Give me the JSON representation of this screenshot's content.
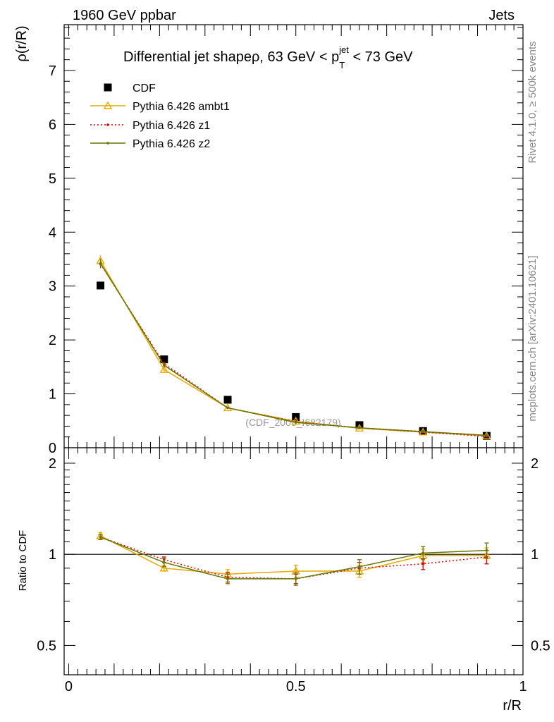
{
  "header": {
    "left": "1960 GeV ppbar",
    "right": "Jets"
  },
  "side_labels": {
    "rivet": "Rivet 4.1.0, ≥ 500k events",
    "mcplots": "mcplots.cern.ch [arXiv:2401.10621]"
  },
  "chart_data": {
    "type": "line",
    "title": "Differential jet shapeρ, 63 GeV < p_T^jet < 73 GeV",
    "title_parts": {
      "main": "Differential jet shapeρ, 63 GeV < p",
      "sub": "T",
      "sup": "jet",
      "tail": " < 73 GeV"
    },
    "watermark": "(CDF_2005_I682179)",
    "xlabel": "r/R",
    "ylabel": "ρ(r/R)",
    "ratio_ylabel": "Ratio to CDF",
    "xlim": [
      -0.01,
      1.0
    ],
    "ylim": [
      0,
      7.85
    ],
    "ratio_ylim": [
      0.4,
      2.25
    ],
    "x_ticks": [
      "0",
      "0.5",
      "1"
    ],
    "y_ticks": [
      "0",
      "1",
      "2",
      "3",
      "4",
      "5",
      "6",
      "7"
    ],
    "ratio_ticks": [
      "0.5",
      "1",
      "2"
    ],
    "x": [
      0.07,
      0.21,
      0.35,
      0.5,
      0.64,
      0.78,
      0.92
    ],
    "series": [
      {
        "name": "CDF",
        "color": "#000000",
        "style": "marker",
        "values": [
          3.01,
          1.64,
          0.89,
          0.57,
          0.42,
          0.31,
          0.22
        ],
        "ratio": [
          1.0,
          1.0,
          1.0,
          1.0,
          1.0,
          1.0,
          1.0
        ]
      },
      {
        "name": "Pythia 6.426 ambt1",
        "color": "#e8a800",
        "style": "triangle",
        "values": [
          3.47,
          1.45,
          0.74,
          0.49,
          0.36,
          0.29,
          0.22
        ],
        "errors": [
          0.1,
          0.04,
          0.02,
          0.02,
          0.02,
          0.02,
          0.02
        ],
        "ratio": [
          1.15,
          0.9,
          0.86,
          0.88,
          0.88,
          0.99,
          0.99
        ],
        "ratio_errors": [
          0.03,
          0.02,
          0.03,
          0.04,
          0.04,
          0.05,
          0.06
        ]
      },
      {
        "name": "Pythia 6.426 z1",
        "color": "#dd0000",
        "style": "dotted",
        "values": [
          3.41,
          1.56,
          0.74,
          0.48,
          0.37,
          0.29,
          0.21
        ],
        "errors": [
          0.08,
          0.04,
          0.02,
          0.02,
          0.02,
          0.02,
          0.02
        ],
        "ratio": [
          1.14,
          0.96,
          0.84,
          0.83,
          0.9,
          0.93,
          0.98
        ],
        "ratio_errors": [
          0.02,
          0.02,
          0.03,
          0.03,
          0.04,
          0.04,
          0.05
        ]
      },
      {
        "name": "Pythia 6.426 z2",
        "color": "#667700",
        "style": "solid",
        "values": [
          3.42,
          1.53,
          0.74,
          0.47,
          0.37,
          0.3,
          0.23
        ],
        "errors": [
          0.08,
          0.04,
          0.02,
          0.02,
          0.02,
          0.02,
          0.02
        ],
        "ratio": [
          1.14,
          0.94,
          0.83,
          0.83,
          0.91,
          1.01,
          1.03
        ],
        "ratio_errors": [
          0.02,
          0.03,
          0.03,
          0.04,
          0.05,
          0.05,
          0.06
        ]
      }
    ]
  }
}
